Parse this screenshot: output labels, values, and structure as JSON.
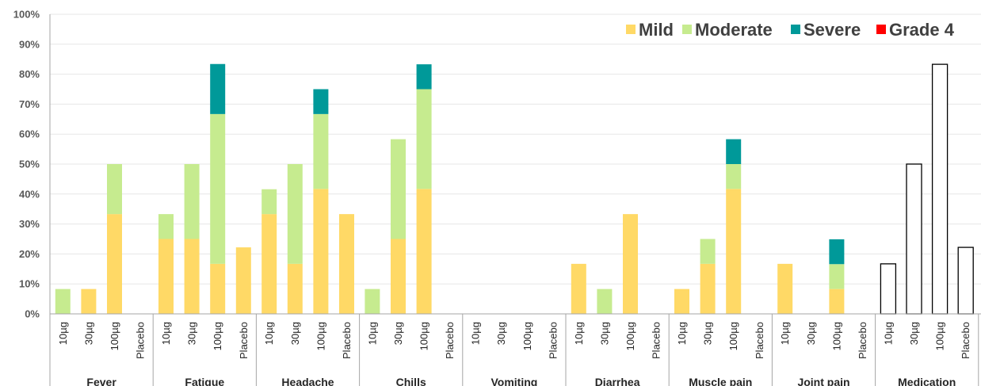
{
  "colors": {
    "mild": "#FFD966",
    "moderate": "#C6EB8F",
    "severe": "#009999",
    "grade4": "#FF0000",
    "medication_fill": "#FFFFFF",
    "medication_stroke": "#000000",
    "axis": "#A6A6A6",
    "grid": "#E7E7E7"
  },
  "chart_data": {
    "type": "bar",
    "stacked": true,
    "title": "",
    "xlabel": "",
    "ylabel": "",
    "ylim": [
      0,
      100
    ],
    "y_ticks": [
      "0%",
      "10%",
      "20%",
      "30%",
      "40%",
      "50%",
      "60%",
      "70%",
      "80%",
      "90%",
      "100%"
    ],
    "grid": true,
    "legend_position": "top-right",
    "legend": [
      "Mild",
      "Moderate",
      "Severe",
      "Grade 4"
    ],
    "doses": [
      "10µg",
      "30µg",
      "100µg",
      "Placebo"
    ],
    "groups": [
      {
        "name": "Fever",
        "bars": [
          {
            "mild": 0,
            "moderate": 8.3,
            "severe": 0,
            "grade4": 0
          },
          {
            "mild": 8.3,
            "moderate": 0,
            "severe": 0,
            "grade4": 0
          },
          {
            "mild": 33.3,
            "moderate": 16.7,
            "severe": 0,
            "grade4": 0
          },
          {
            "mild": 0,
            "moderate": 0,
            "severe": 0,
            "grade4": 0
          }
        ]
      },
      {
        "name": "Fatigue",
        "bars": [
          {
            "mild": 25,
            "moderate": 8.3,
            "severe": 0,
            "grade4": 0
          },
          {
            "mild": 25,
            "moderate": 25,
            "severe": 0,
            "grade4": 0
          },
          {
            "mild": 16.7,
            "moderate": 50,
            "severe": 16.7,
            "grade4": 0
          },
          {
            "mild": 22.2,
            "moderate": 0,
            "severe": 0,
            "grade4": 0
          }
        ]
      },
      {
        "name": "Headache",
        "bars": [
          {
            "mild": 33.3,
            "moderate": 8.3,
            "severe": 0,
            "grade4": 0
          },
          {
            "mild": 16.7,
            "moderate": 33.3,
            "severe": 0,
            "grade4": 0
          },
          {
            "mild": 41.7,
            "moderate": 25,
            "severe": 8.3,
            "grade4": 0
          },
          {
            "mild": 33.3,
            "moderate": 0,
            "severe": 0,
            "grade4": 0
          }
        ]
      },
      {
        "name": "Chills",
        "bars": [
          {
            "mild": 0,
            "moderate": 8.3,
            "severe": 0,
            "grade4": 0
          },
          {
            "mild": 25,
            "moderate": 33.3,
            "severe": 0,
            "grade4": 0
          },
          {
            "mild": 41.7,
            "moderate": 33.3,
            "severe": 8.3,
            "grade4": 0
          },
          {
            "mild": 0,
            "moderate": 0,
            "severe": 0,
            "grade4": 0
          }
        ]
      },
      {
        "name": "Vomiting",
        "bars": [
          {
            "mild": 0,
            "moderate": 0,
            "severe": 0,
            "grade4": 0
          },
          {
            "mild": 0,
            "moderate": 0,
            "severe": 0,
            "grade4": 0
          },
          {
            "mild": 0,
            "moderate": 0,
            "severe": 0,
            "grade4": 0
          },
          {
            "mild": 0,
            "moderate": 0,
            "severe": 0,
            "grade4": 0
          }
        ]
      },
      {
        "name": "Diarrhea",
        "bars": [
          {
            "mild": 16.7,
            "moderate": 0,
            "severe": 0,
            "grade4": 0
          },
          {
            "mild": 0,
            "moderate": 8.3,
            "severe": 0,
            "grade4": 0
          },
          {
            "mild": 33.3,
            "moderate": 0,
            "severe": 0,
            "grade4": 0
          },
          {
            "mild": 0,
            "moderate": 0,
            "severe": 0,
            "grade4": 0
          }
        ]
      },
      {
        "name": "Muscle pain",
        "bars": [
          {
            "mild": 8.3,
            "moderate": 0,
            "severe": 0,
            "grade4": 0
          },
          {
            "mild": 16.7,
            "moderate": 8.3,
            "severe": 0,
            "grade4": 0
          },
          {
            "mild": 41.7,
            "moderate": 8.3,
            "severe": 8.3,
            "grade4": 0
          },
          {
            "mild": 0,
            "moderate": 0,
            "severe": 0,
            "grade4": 0
          }
        ]
      },
      {
        "name": "Joint pain",
        "bars": [
          {
            "mild": 16.7,
            "moderate": 0,
            "severe": 0,
            "grade4": 0
          },
          {
            "mild": 0,
            "moderate": 0,
            "severe": 0,
            "grade4": 0
          },
          {
            "mild": 8.3,
            "moderate": 8.3,
            "severe": 8.3,
            "grade4": 0
          },
          {
            "mild": 0,
            "moderate": 0,
            "severe": 0,
            "grade4": 0
          }
        ]
      },
      {
        "name": "Medication",
        "bars": [
          {
            "total": 16.7
          },
          {
            "total": 50
          },
          {
            "total": 83.3
          },
          {
            "total": 22.2
          }
        ]
      }
    ]
  }
}
